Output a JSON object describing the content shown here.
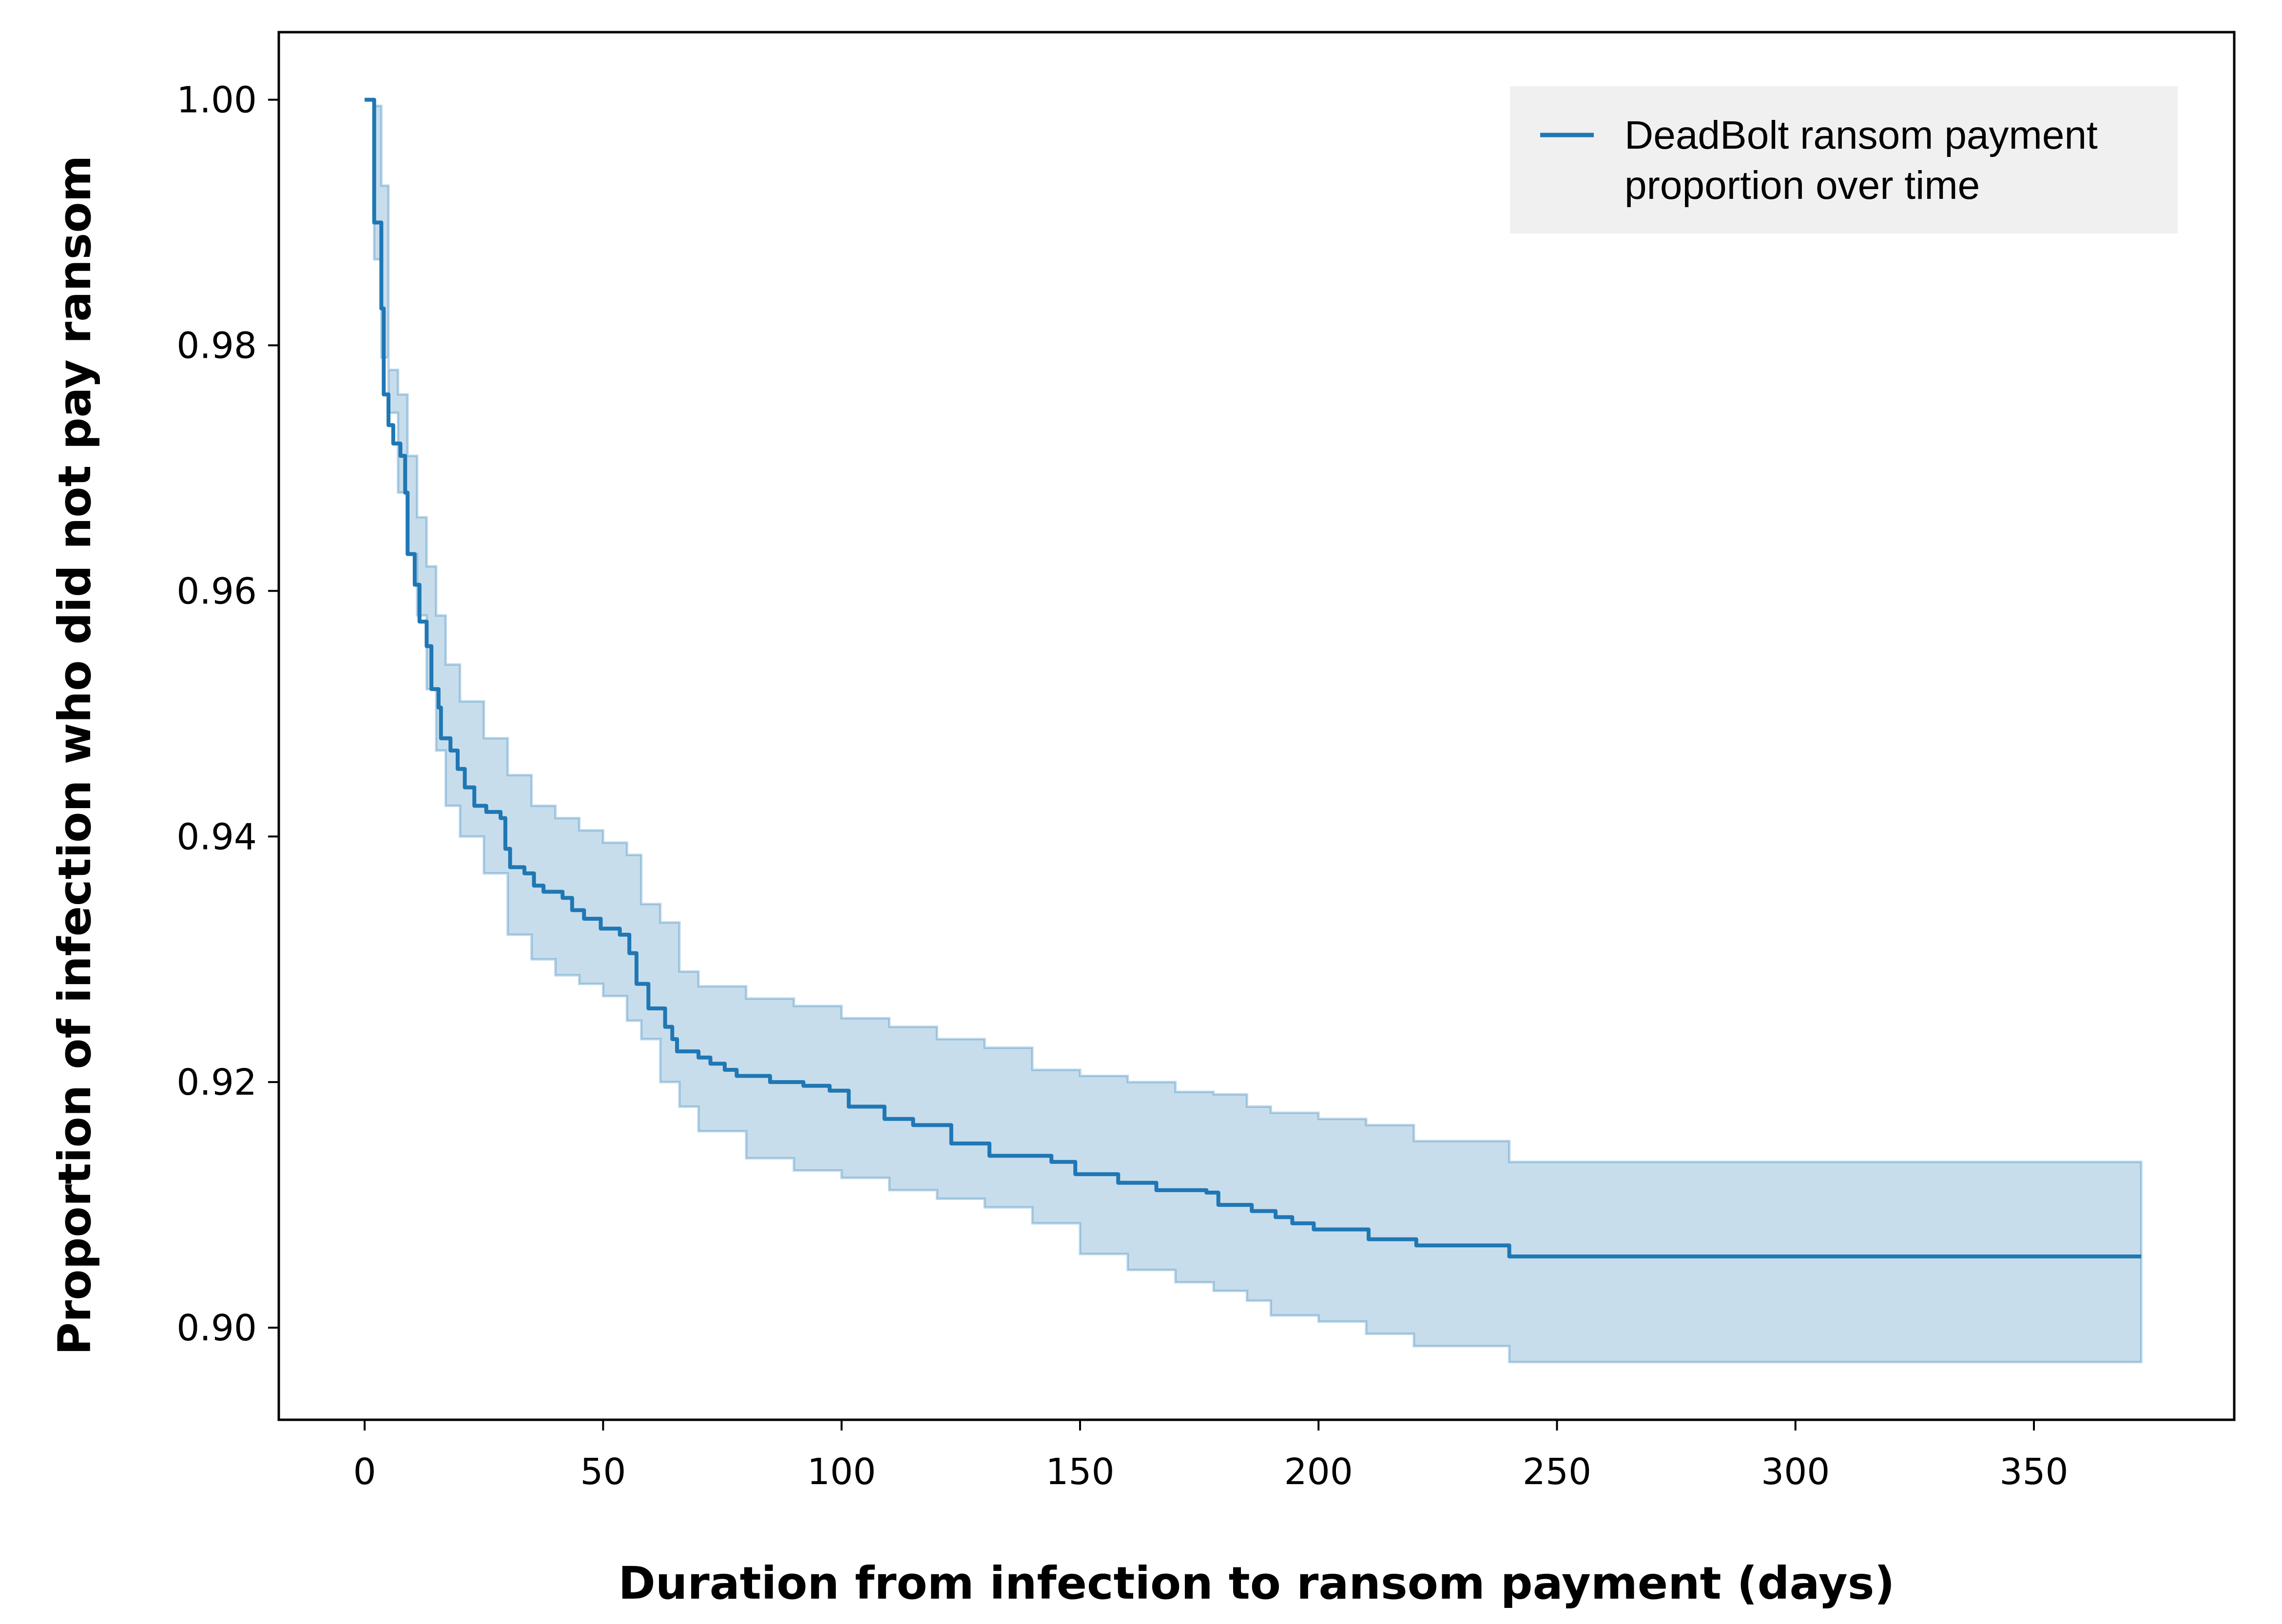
{
  "chart_data": {
    "type": "line",
    "title": "",
    "xlabel": "Duration from infection to ransom payment (days)",
    "ylabel": "Proportion of infection who did not pay ransom",
    "xlim": [
      -18,
      392
    ],
    "ylim": [
      0.8925,
      1.0055
    ],
    "xticks": [
      0,
      50,
      100,
      150,
      200,
      250,
      300,
      350
    ],
    "xtick_labels": [
      "0",
      "50",
      "100",
      "150",
      "200",
      "250",
      "300",
      "350"
    ],
    "yticks": [
      0.9,
      0.92,
      0.94,
      0.96,
      0.98,
      1.0
    ],
    "ytick_labels": [
      "0.90",
      "0.92",
      "0.94",
      "0.96",
      "0.98",
      "1.00"
    ],
    "grid": false,
    "legend_position": "top-right",
    "step": "post",
    "series": [
      {
        "name": "DeadBolt ransom payment proportion over time",
        "color": "#1f77b4",
        "x": [
          0,
          2,
          3.5,
          4,
          5,
          6,
          7.5,
          8.5,
          9,
          10.5,
          11.5,
          13,
          14,
          15.5,
          16,
          18,
          19.5,
          21,
          23,
          25.5,
          28.5,
          29.5,
          30.5,
          33.5,
          35.5,
          37.5,
          41.5,
          43.5,
          46,
          49.5,
          53.5,
          55.5,
          57,
          59.5,
          63,
          64.5,
          65.5,
          70,
          72.5,
          75.5,
          78,
          85,
          92,
          97.5,
          101.5,
          109,
          115,
          123,
          131,
          144,
          149,
          158,
          166,
          176.5,
          179,
          186,
          191,
          194.5,
          199,
          210.5,
          220.5,
          240,
          372.5
        ],
        "y": [
          1.0,
          0.99,
          0.983,
          0.976,
          0.9735,
          0.972,
          0.971,
          0.968,
          0.963,
          0.9605,
          0.9575,
          0.9555,
          0.952,
          0.9505,
          0.948,
          0.947,
          0.9455,
          0.944,
          0.9425,
          0.942,
          0.9415,
          0.939,
          0.9375,
          0.937,
          0.936,
          0.9355,
          0.935,
          0.934,
          0.9333,
          0.9325,
          0.932,
          0.9305,
          0.928,
          0.926,
          0.9245,
          0.9235,
          0.9225,
          0.922,
          0.9215,
          0.921,
          0.9205,
          0.92,
          0.9197,
          0.9193,
          0.918,
          0.917,
          0.9165,
          0.915,
          0.914,
          0.9135,
          0.9125,
          0.9118,
          0.9112,
          0.911,
          0.91,
          0.9095,
          0.909,
          0.9085,
          0.908,
          0.9072,
          0.9067,
          0.9058,
          0.9058
        ]
      }
    ],
    "confidence_band": {
      "color": "#1f77b4",
      "opacity": 0.25,
      "x": [
        0,
        2,
        3.5,
        5,
        7,
        9,
        11,
        13,
        15,
        17,
        20,
        25,
        30,
        35,
        40,
        45,
        50,
        55,
        58,
        62,
        66,
        70,
        80,
        90,
        100,
        110,
        120,
        130,
        140,
        150,
        160,
        170,
        178,
        185,
        190,
        200,
        210,
        220,
        240,
        372.5
      ],
      "upper": [
        1.0,
        0.9995,
        0.993,
        0.978,
        0.976,
        0.971,
        0.966,
        0.962,
        0.958,
        0.954,
        0.951,
        0.948,
        0.945,
        0.9425,
        0.9415,
        0.9405,
        0.9395,
        0.9385,
        0.9345,
        0.933,
        0.929,
        0.9278,
        0.9268,
        0.9262,
        0.9252,
        0.9245,
        0.9235,
        0.9228,
        0.921,
        0.9205,
        0.92,
        0.9192,
        0.919,
        0.918,
        0.9175,
        0.917,
        0.9165,
        0.9152,
        0.9135,
        0.9135
      ],
      "lower": [
        1.0,
        0.987,
        0.979,
        0.9745,
        0.968,
        0.963,
        0.958,
        0.952,
        0.947,
        0.9425,
        0.94,
        0.937,
        0.932,
        0.93,
        0.9287,
        0.928,
        0.927,
        0.925,
        0.9235,
        0.92,
        0.918,
        0.916,
        0.9138,
        0.9128,
        0.9122,
        0.9112,
        0.9105,
        0.9098,
        0.9085,
        0.906,
        0.9047,
        0.9037,
        0.903,
        0.9022,
        0.901,
        0.9005,
        0.8995,
        0.8985,
        0.8972,
        0.8972
      ]
    }
  }
}
